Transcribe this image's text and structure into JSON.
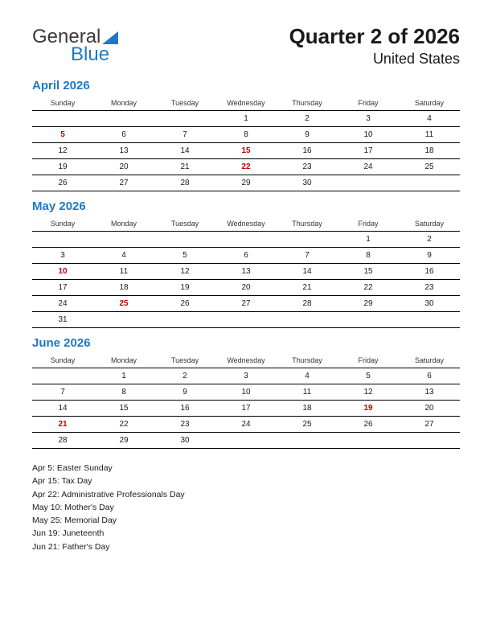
{
  "logo": {
    "word1": "General",
    "word2": "Blue",
    "tri_color": "#1e78c8"
  },
  "title": "Quarter 2 of 2026",
  "subtitle": "United States",
  "dow": [
    "Sunday",
    "Monday",
    "Tuesday",
    "Wednesday",
    "Thursday",
    "Friday",
    "Saturday"
  ],
  "colors": {
    "accent": "#1e78c8",
    "holiday": "#c00000",
    "rule": "#000000",
    "text": "#1a1a1a",
    "background": "#ffffff"
  },
  "fonts": {
    "title_size": 26,
    "subtitle_size": 18,
    "month_title_size": 15,
    "dow_size": 9,
    "cell_size": 10,
    "event_size": 10.5
  },
  "months": [
    {
      "title": "April 2026",
      "weeks": [
        [
          {
            "d": "",
            "h": false
          },
          {
            "d": "",
            "h": false
          },
          {
            "d": "",
            "h": false
          },
          {
            "d": "1",
            "h": false
          },
          {
            "d": "2",
            "h": false
          },
          {
            "d": "3",
            "h": false
          },
          {
            "d": "4",
            "h": false
          }
        ],
        [
          {
            "d": "5",
            "h": true
          },
          {
            "d": "6",
            "h": false
          },
          {
            "d": "7",
            "h": false
          },
          {
            "d": "8",
            "h": false
          },
          {
            "d": "9",
            "h": false
          },
          {
            "d": "10",
            "h": false
          },
          {
            "d": "11",
            "h": false
          }
        ],
        [
          {
            "d": "12",
            "h": false
          },
          {
            "d": "13",
            "h": false
          },
          {
            "d": "14",
            "h": false
          },
          {
            "d": "15",
            "h": true
          },
          {
            "d": "16",
            "h": false
          },
          {
            "d": "17",
            "h": false
          },
          {
            "d": "18",
            "h": false
          }
        ],
        [
          {
            "d": "19",
            "h": false
          },
          {
            "d": "20",
            "h": false
          },
          {
            "d": "21",
            "h": false
          },
          {
            "d": "22",
            "h": true
          },
          {
            "d": "23",
            "h": false
          },
          {
            "d": "24",
            "h": false
          },
          {
            "d": "25",
            "h": false
          }
        ],
        [
          {
            "d": "26",
            "h": false
          },
          {
            "d": "27",
            "h": false
          },
          {
            "d": "28",
            "h": false
          },
          {
            "d": "29",
            "h": false
          },
          {
            "d": "30",
            "h": false
          },
          {
            "d": "",
            "h": false
          },
          {
            "d": "",
            "h": false
          }
        ]
      ]
    },
    {
      "title": "May 2026",
      "weeks": [
        [
          {
            "d": "",
            "h": false
          },
          {
            "d": "",
            "h": false
          },
          {
            "d": "",
            "h": false
          },
          {
            "d": "",
            "h": false
          },
          {
            "d": "",
            "h": false
          },
          {
            "d": "1",
            "h": false
          },
          {
            "d": "2",
            "h": false
          }
        ],
        [
          {
            "d": "3",
            "h": false
          },
          {
            "d": "4",
            "h": false
          },
          {
            "d": "5",
            "h": false
          },
          {
            "d": "6",
            "h": false
          },
          {
            "d": "7",
            "h": false
          },
          {
            "d": "8",
            "h": false
          },
          {
            "d": "9",
            "h": false
          }
        ],
        [
          {
            "d": "10",
            "h": true
          },
          {
            "d": "11",
            "h": false
          },
          {
            "d": "12",
            "h": false
          },
          {
            "d": "13",
            "h": false
          },
          {
            "d": "14",
            "h": false
          },
          {
            "d": "15",
            "h": false
          },
          {
            "d": "16",
            "h": false
          }
        ],
        [
          {
            "d": "17",
            "h": false
          },
          {
            "d": "18",
            "h": false
          },
          {
            "d": "19",
            "h": false
          },
          {
            "d": "20",
            "h": false
          },
          {
            "d": "21",
            "h": false
          },
          {
            "d": "22",
            "h": false
          },
          {
            "d": "23",
            "h": false
          }
        ],
        [
          {
            "d": "24",
            "h": false
          },
          {
            "d": "25",
            "h": true
          },
          {
            "d": "26",
            "h": false
          },
          {
            "d": "27",
            "h": false
          },
          {
            "d": "28",
            "h": false
          },
          {
            "d": "29",
            "h": false
          },
          {
            "d": "30",
            "h": false
          }
        ],
        [
          {
            "d": "31",
            "h": false
          },
          {
            "d": "",
            "h": false
          },
          {
            "d": "",
            "h": false
          },
          {
            "d": "",
            "h": false
          },
          {
            "d": "",
            "h": false
          },
          {
            "d": "",
            "h": false
          },
          {
            "d": "",
            "h": false
          }
        ]
      ]
    },
    {
      "title": "June 2026",
      "weeks": [
        [
          {
            "d": "",
            "h": false
          },
          {
            "d": "1",
            "h": false
          },
          {
            "d": "2",
            "h": false
          },
          {
            "d": "3",
            "h": false
          },
          {
            "d": "4",
            "h": false
          },
          {
            "d": "5",
            "h": false
          },
          {
            "d": "6",
            "h": false
          }
        ],
        [
          {
            "d": "7",
            "h": false
          },
          {
            "d": "8",
            "h": false
          },
          {
            "d": "9",
            "h": false
          },
          {
            "d": "10",
            "h": false
          },
          {
            "d": "11",
            "h": false
          },
          {
            "d": "12",
            "h": false
          },
          {
            "d": "13",
            "h": false
          }
        ],
        [
          {
            "d": "14",
            "h": false
          },
          {
            "d": "15",
            "h": false
          },
          {
            "d": "16",
            "h": false
          },
          {
            "d": "17",
            "h": false
          },
          {
            "d": "18",
            "h": false
          },
          {
            "d": "19",
            "h": true
          },
          {
            "d": "20",
            "h": false
          }
        ],
        [
          {
            "d": "21",
            "h": true
          },
          {
            "d": "22",
            "h": false
          },
          {
            "d": "23",
            "h": false
          },
          {
            "d": "24",
            "h": false
          },
          {
            "d": "25",
            "h": false
          },
          {
            "d": "26",
            "h": false
          },
          {
            "d": "27",
            "h": false
          }
        ],
        [
          {
            "d": "28",
            "h": false
          },
          {
            "d": "29",
            "h": false
          },
          {
            "d": "30",
            "h": false
          },
          {
            "d": "",
            "h": false
          },
          {
            "d": "",
            "h": false
          },
          {
            "d": "",
            "h": false
          },
          {
            "d": "",
            "h": false
          }
        ]
      ]
    }
  ],
  "events": [
    "Apr 5: Easter Sunday",
    "Apr 15: Tax Day",
    "Apr 22: Administrative Professionals Day",
    "May 10: Mother's Day",
    "May 25: Memorial Day",
    "Jun 19: Juneteenth",
    "Jun 21: Father's Day"
  ]
}
